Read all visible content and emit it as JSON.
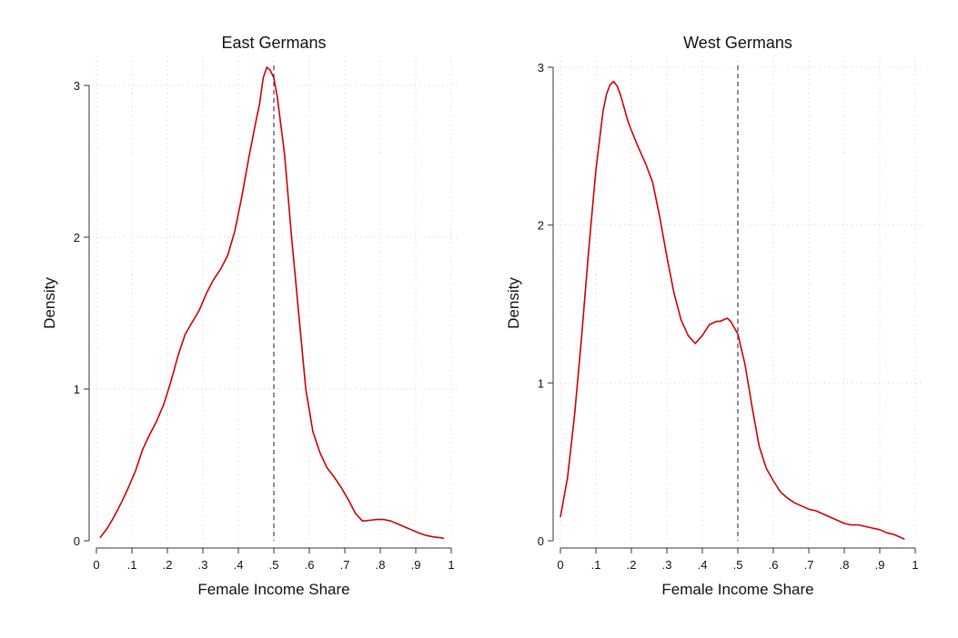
{
  "chart_data": [
    {
      "type": "line",
      "title": "East Germans",
      "xlabel": "Female Income Share",
      "ylabel": "Density",
      "xlim": [
        0,
        1
      ],
      "ylim": [
        0,
        3
      ],
      "x_ticks": [
        "0",
        ".1",
        ".2",
        ".3",
        ".4",
        ".5",
        ".6",
        ".7",
        ".8",
        ".9",
        "1"
      ],
      "x_tick_values": [
        0,
        0.1,
        0.2,
        0.3,
        0.4,
        0.5,
        0.6,
        0.7,
        0.8,
        0.9,
        1
      ],
      "y_ticks": [
        "0",
        "1",
        "2",
        "3"
      ],
      "y_tick_values": [
        0,
        1,
        2,
        3
      ],
      "grid": true,
      "reference_line_x": 0.5,
      "line_color": "#cc0000",
      "reference_line_color": "#666666",
      "series": [
        {
          "x": [
            0.01,
            0.03,
            0.05,
            0.07,
            0.09,
            0.11,
            0.13,
            0.15,
            0.17,
            0.19,
            0.21,
            0.23,
            0.25,
            0.27,
            0.29,
            0.31,
            0.33,
            0.35,
            0.37,
            0.39,
            0.41,
            0.43,
            0.45,
            0.46,
            0.47,
            0.48,
            0.49,
            0.5,
            0.51,
            0.53,
            0.55,
            0.57,
            0.59,
            0.61,
            0.63,
            0.65,
            0.67,
            0.69,
            0.71,
            0.73,
            0.75,
            0.77,
            0.79,
            0.81,
            0.83,
            0.85,
            0.87,
            0.89,
            0.91,
            0.93,
            0.95,
            0.97,
            0.98
          ],
          "y": [
            0.02,
            0.08,
            0.16,
            0.25,
            0.35,
            0.46,
            0.6,
            0.7,
            0.79,
            0.9,
            1.05,
            1.22,
            1.36,
            1.44,
            1.52,
            1.63,
            1.72,
            1.79,
            1.88,
            2.04,
            2.27,
            2.53,
            2.77,
            2.88,
            3.05,
            3.12,
            3.1,
            3.05,
            2.92,
            2.55,
            2.0,
            1.5,
            1.0,
            0.72,
            0.58,
            0.48,
            0.42,
            0.35,
            0.27,
            0.18,
            0.13,
            0.135,
            0.14,
            0.14,
            0.13,
            0.11,
            0.09,
            0.07,
            0.05,
            0.035,
            0.025,
            0.02,
            0.015
          ]
        }
      ]
    },
    {
      "type": "line",
      "title": "West Germans",
      "xlabel": "Female Income Share",
      "ylabel": "Density",
      "xlim": [
        0,
        1
      ],
      "ylim": [
        0,
        3
      ],
      "x_ticks": [
        "0",
        ".1",
        ".2",
        ".3",
        ".4",
        ".5",
        ".6",
        ".7",
        ".8",
        ".9",
        "1"
      ],
      "x_tick_values": [
        0,
        0.1,
        0.2,
        0.3,
        0.4,
        0.5,
        0.6,
        0.7,
        0.8,
        0.9,
        1
      ],
      "y_ticks": [
        "0",
        "1",
        "2",
        "3"
      ],
      "y_tick_values": [
        0,
        1,
        2,
        3
      ],
      "grid": true,
      "reference_line_x": 0.5,
      "line_color": "#cc0000",
      "reference_line_color": "#666666",
      "series": [
        {
          "x": [
            0.0,
            0.02,
            0.04,
            0.06,
            0.08,
            0.1,
            0.12,
            0.13,
            0.14,
            0.15,
            0.16,
            0.17,
            0.18,
            0.19,
            0.2,
            0.22,
            0.24,
            0.26,
            0.28,
            0.3,
            0.32,
            0.34,
            0.36,
            0.38,
            0.4,
            0.42,
            0.44,
            0.45,
            0.46,
            0.47,
            0.48,
            0.5,
            0.52,
            0.54,
            0.56,
            0.58,
            0.6,
            0.62,
            0.64,
            0.66,
            0.68,
            0.7,
            0.72,
            0.74,
            0.76,
            0.78,
            0.8,
            0.82,
            0.84,
            0.86,
            0.88,
            0.9,
            0.92,
            0.94,
            0.96,
            0.97
          ],
          "y": [
            0.15,
            0.4,
            0.8,
            1.3,
            1.85,
            2.35,
            2.72,
            2.83,
            2.89,
            2.91,
            2.88,
            2.82,
            2.74,
            2.66,
            2.6,
            2.49,
            2.39,
            2.27,
            2.05,
            1.8,
            1.57,
            1.4,
            1.3,
            1.25,
            1.3,
            1.37,
            1.39,
            1.39,
            1.4,
            1.41,
            1.39,
            1.31,
            1.12,
            0.85,
            0.6,
            0.46,
            0.38,
            0.31,
            0.27,
            0.24,
            0.22,
            0.2,
            0.19,
            0.17,
            0.15,
            0.13,
            0.11,
            0.1,
            0.1,
            0.09,
            0.08,
            0.07,
            0.05,
            0.04,
            0.02,
            0.01
          ]
        }
      ]
    }
  ]
}
